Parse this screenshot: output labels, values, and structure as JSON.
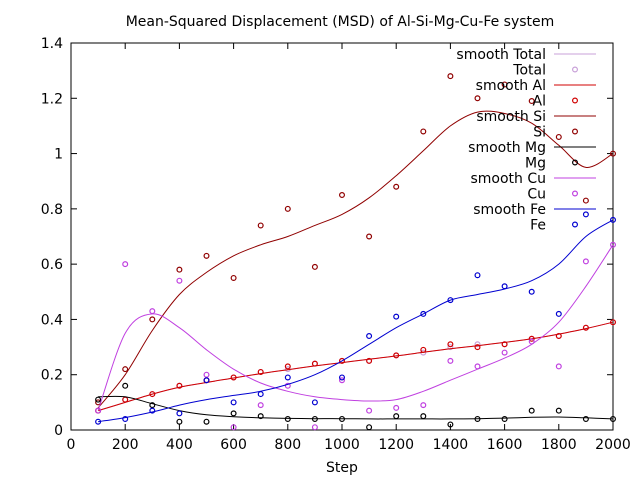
{
  "chart_data": {
    "type": "scatter",
    "title": "Mean-Squared Displacement (MSD) of Al-Si-Mg-Cu-Fe system",
    "xlabel": "Step",
    "ylabel": "",
    "xlim": [
      0,
      2000
    ],
    "ylim": [
      0,
      1.4
    ],
    "xticks": [
      0,
      200,
      400,
      600,
      800,
      1000,
      1200,
      1400,
      1600,
      1800,
      2000
    ],
    "yticks": [
      0,
      0.2,
      0.4,
      0.6,
      0.8,
      1,
      1.2,
      1.4
    ],
    "grid": false,
    "legend_position": "top-right",
    "legend": [
      {
        "label": "smooth Total",
        "kind": "line",
        "color": "#c8a0d8"
      },
      {
        "label": "Total",
        "kind": "points",
        "color": "#c8a0d8"
      },
      {
        "label": "smooth Al",
        "kind": "line",
        "color": "#d00000"
      },
      {
        "label": "Al",
        "kind": "points",
        "color": "#d00000"
      },
      {
        "label": "smooth Si",
        "kind": "line",
        "color": "#900000"
      },
      {
        "label": "Si",
        "kind": "points",
        "color": "#900000"
      },
      {
        "label": "smooth Mg",
        "kind": "line",
        "color": "#000000"
      },
      {
        "label": "Mg",
        "kind": "points",
        "color": "#000000"
      },
      {
        "label": "smooth Cu",
        "kind": "line",
        "color": "#c040e0"
      },
      {
        "label": "Cu",
        "kind": "points",
        "color": "#c040e0"
      },
      {
        "label": "smooth Fe",
        "kind": "line",
        "color": "#0000d0"
      },
      {
        "label": "Fe",
        "kind": "points",
        "color": "#0000d0"
      }
    ],
    "x": [
      100,
      200,
      300,
      400,
      500,
      600,
      700,
      800,
      900,
      1000,
      1100,
      1200,
      1300,
      1400,
      1500,
      1600,
      1700,
      1800,
      1900,
      2000
    ],
    "series": [
      {
        "name": "Total",
        "color": "#c8a0d8",
        "points": [
          0.07,
          0.11,
          0.13,
          0.16,
          0.18,
          0.19,
          0.21,
          0.22,
          0.24,
          0.25,
          0.25,
          0.27,
          0.28,
          0.3,
          0.31,
          0.31,
          0.33,
          0.34,
          0.37,
          0.39
        ],
        "smooth": [
          0.07,
          0.1,
          0.13,
          0.155,
          0.172,
          0.188,
          0.204,
          0.218,
          0.232,
          0.244,
          0.256,
          0.268,
          0.281,
          0.294,
          0.305,
          0.317,
          0.33,
          0.347,
          0.367,
          0.39
        ]
      },
      {
        "name": "Al",
        "color": "#d00000",
        "points": [
          0.07,
          0.11,
          0.13,
          0.16,
          0.18,
          0.19,
          0.21,
          0.23,
          0.24,
          0.25,
          0.25,
          0.27,
          0.29,
          0.31,
          0.3,
          0.31,
          0.33,
          0.34,
          0.37,
          0.39
        ],
        "smooth": [
          0.07,
          0.1,
          0.13,
          0.155,
          0.172,
          0.188,
          0.204,
          0.218,
          0.232,
          0.244,
          0.256,
          0.268,
          0.281,
          0.294,
          0.305,
          0.317,
          0.33,
          0.347,
          0.367,
          0.39
        ]
      },
      {
        "name": "Si",
        "color": "#900000",
        "points": [
          0.1,
          0.22,
          0.4,
          0.58,
          0.63,
          0.55,
          0.74,
          0.8,
          0.59,
          0.85,
          0.7,
          0.88,
          1.08,
          1.28,
          1.2,
          1.25,
          1.19,
          1.06,
          0.83,
          1.0
        ],
        "smooth": [
          0.08,
          0.2,
          0.36,
          0.49,
          0.57,
          0.63,
          0.67,
          0.7,
          0.74,
          0.78,
          0.84,
          0.92,
          1.01,
          1.1,
          1.15,
          1.145,
          1.11,
          1.03,
          0.95,
          1.0
        ]
      },
      {
        "name": "Mg",
        "color": "#000000",
        "points": [
          0.11,
          0.16,
          0.09,
          0.03,
          0.03,
          0.06,
          0.05,
          0.04,
          0.04,
          0.04,
          0.01,
          0.05,
          0.05,
          0.02,
          0.04,
          0.04,
          0.07,
          0.07,
          0.04,
          0.04
        ],
        "smooth": [
          0.12,
          0.12,
          0.095,
          0.07,
          0.055,
          0.048,
          0.044,
          0.042,
          0.041,
          0.041,
          0.04,
          0.04,
          0.04,
          0.04,
          0.041,
          0.043,
          0.046,
          0.047,
          0.044,
          0.04
        ]
      },
      {
        "name": "Cu",
        "color": "#c040e0",
        "points": [
          0.07,
          0.6,
          0.43,
          0.54,
          0.2,
          0.01,
          0.09,
          0.16,
          0.01,
          0.18,
          0.07,
          0.08,
          0.09,
          0.25,
          0.23,
          0.28,
          0.32,
          0.23,
          0.61,
          0.67
        ],
        "smooth": [
          0.07,
          0.35,
          0.42,
          0.37,
          0.29,
          0.22,
          0.17,
          0.14,
          0.12,
          0.11,
          0.105,
          0.11,
          0.14,
          0.18,
          0.22,
          0.26,
          0.31,
          0.39,
          0.52,
          0.67
        ]
      },
      {
        "name": "Fe",
        "color": "#0000d0",
        "points": [
          0.03,
          0.04,
          0.07,
          0.06,
          0.18,
          0.1,
          0.13,
          0.19,
          0.1,
          0.19,
          0.34,
          0.41,
          0.42,
          0.47,
          0.56,
          0.52,
          0.5,
          0.42,
          0.78,
          0.76
        ],
        "smooth": [
          0.03,
          0.045,
          0.065,
          0.09,
          0.11,
          0.125,
          0.14,
          0.165,
          0.2,
          0.25,
          0.31,
          0.37,
          0.42,
          0.47,
          0.49,
          0.51,
          0.54,
          0.6,
          0.7,
          0.76
        ]
      }
    ]
  }
}
